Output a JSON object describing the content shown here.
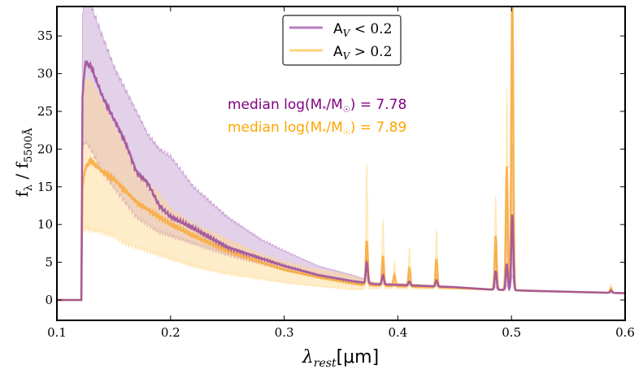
{
  "chart_data": {
    "type": "line",
    "xlabel": "λ_rest [μm]",
    "xlabel_main": "λ",
    "xlabel_sub": "rest",
    "xlabel_unit": "[μm]",
    "ylabel": "f_λ / f_5500Å",
    "ylabel_main": "f",
    "ylabel_sub1": "λ",
    "ylabel_mid": " / f",
    "ylabel_sub2": "5500Å",
    "xlim": [
      0.1,
      0.6
    ],
    "ylim": [
      -2.7,
      38.9
    ],
    "xticks": [
      0.1,
      0.2,
      0.3,
      0.4,
      0.5,
      0.6
    ],
    "xtick_labels": [
      "0.1",
      "0.2",
      "0.3",
      "0.4",
      "0.5",
      "0.6"
    ],
    "yticks": [
      0,
      5,
      10,
      15,
      20,
      25,
      30,
      35
    ],
    "ytick_labels": [
      "0",
      "5",
      "10",
      "15",
      "20",
      "25",
      "30",
      "35"
    ],
    "legend": {
      "placement": "top-center",
      "entries": [
        {
          "label": "A_V < 0.2",
          "main": "A",
          "sub": "V",
          "rest": " < 0.2",
          "color": "#b77fc0"
        },
        {
          "label": "A_V > 0.2",
          "main": "A",
          "sub": "V",
          "rest": " > 0.2",
          "color": "#ffd27a"
        }
      ]
    },
    "annotations": [
      {
        "text": "median log(M*/M☉) = 7.78",
        "pre": "median log(M",
        "s1": "*",
        "mid": "/M",
        "s2": "☉",
        "post": ") = 7.78",
        "color": "#800080"
      },
      {
        "text": "median log(M*/M☉) = 7.89",
        "pre": "median log(M",
        "s1": "*",
        "mid": "/M",
        "s2": "☉",
        "post": ") = 7.89",
        "color": "#ffa500"
      }
    ],
    "series": [
      {
        "name": "A_V < 0.2",
        "line_color": "#a0509a",
        "fill_color": "#b077c0",
        "x": [
          0.1,
          0.1215,
          0.1225,
          0.125,
          0.13,
          0.14,
          0.15,
          0.16,
          0.17,
          0.18,
          0.19,
          0.2,
          0.22,
          0.25,
          0.28,
          0.3,
          0.33,
          0.36,
          0.37,
          0.38,
          0.4,
          0.45,
          0.48,
          0.5,
          0.52,
          0.56,
          0.6
        ],
        "median": [
          0,
          0,
          27,
          31.5,
          31,
          27,
          24,
          21,
          17,
          15.5,
          12.5,
          11,
          9.5,
          7,
          5.5,
          4.5,
          3.3,
          2.5,
          2.3,
          2.1,
          2.0,
          1.7,
          1.4,
          1.3,
          1.2,
          1.05,
          0.9
        ],
        "low": [
          0,
          0,
          20,
          21,
          20,
          17,
          15,
          13,
          11,
          10,
          9,
          8.5,
          7.5,
          6,
          4.8,
          4,
          3,
          2.2,
          2.0,
          1.9,
          1.8,
          1.6,
          1.3,
          1.2,
          1.1,
          1.0,
          0.85
        ],
        "high": [
          0,
          0,
          38,
          40,
          39,
          35,
          31,
          28,
          25,
          22,
          20,
          19,
          15,
          11,
          8,
          6.5,
          4.5,
          3.3,
          2.8,
          2.3,
          2.2,
          1.8,
          1.5,
          1.4,
          1.3,
          1.1,
          0.95
        ],
        "lines": [
          {
            "x": 0.3727,
            "med": 2.8,
            "high": 4.5
          },
          {
            "x": 0.3869,
            "med": 1.2,
            "high": 2.5
          },
          {
            "x": 0.4102,
            "med": 0.5,
            "high": 1
          },
          {
            "x": 0.434,
            "med": 0.8,
            "high": 1.5
          },
          {
            "x": 0.4861,
            "med": 2.5,
            "high": 5
          },
          {
            "x": 0.4959,
            "med": 3.5,
            "high": 8
          },
          {
            "x": 0.5007,
            "med": 10.3,
            "high": 20
          },
          {
            "x": 0.5876,
            "med": 0.3,
            "high": 0.5
          }
        ]
      },
      {
        "name": "A_V > 0.2",
        "line_color": "#f8ac40",
        "fill_color": "#ffd88a",
        "x": [
          0.1,
          0.1215,
          0.1225,
          0.125,
          0.13,
          0.14,
          0.15,
          0.16,
          0.17,
          0.18,
          0.19,
          0.2,
          0.22,
          0.25,
          0.28,
          0.3,
          0.33,
          0.36,
          0.37,
          0.38,
          0.4,
          0.45,
          0.48,
          0.5,
          0.52,
          0.56,
          0.6
        ],
        "median": [
          0,
          0,
          15,
          17.5,
          18.5,
          17,
          16,
          14.5,
          13,
          12,
          11,
          10,
          8.5,
          6.5,
          5,
          4,
          3,
          2.2,
          2.0,
          1.9,
          1.8,
          1.6,
          1.4,
          1.3,
          1.2,
          1.05,
          0.9
        ],
        "low": [
          0,
          0,
          9,
          9.5,
          9.3,
          9,
          8.5,
          7.5,
          7,
          6.5,
          6,
          5.5,
          4.5,
          3.5,
          2.8,
          2.3,
          1.8,
          1.4,
          1.4,
          1.5,
          1.5,
          1.4,
          1.3,
          1.2,
          1.1,
          1.0,
          0.85
        ],
        "high": [
          0,
          0,
          25,
          29,
          29,
          26,
          23,
          20,
          17,
          15.5,
          14,
          12,
          10,
          8,
          6,
          5,
          4,
          3.2,
          2.6,
          2.3,
          2.2,
          1.8,
          1.5,
          1.4,
          1.3,
          1.1,
          0.95
        ],
        "lines": [
          {
            "x": 0.3727,
            "med": 6,
            "high": 16
          },
          {
            "x": 0.3869,
            "med": 4,
            "high": 8.5
          },
          {
            "x": 0.397,
            "med": 1.5,
            "high": 3
          },
          {
            "x": 0.4102,
            "med": 2.5,
            "high": 5
          },
          {
            "x": 0.434,
            "med": 3.8,
            "high": 7.5
          },
          {
            "x": 0.4861,
            "med": 7.2,
            "high": 12.5
          },
          {
            "x": 0.4959,
            "med": 16.5,
            "high": 27
          },
          {
            "x": 0.5007,
            "med": 40,
            "high": 45
          },
          {
            "x": 0.5876,
            "med": 0.6,
            "high": 1.2
          }
        ]
      }
    ]
  }
}
